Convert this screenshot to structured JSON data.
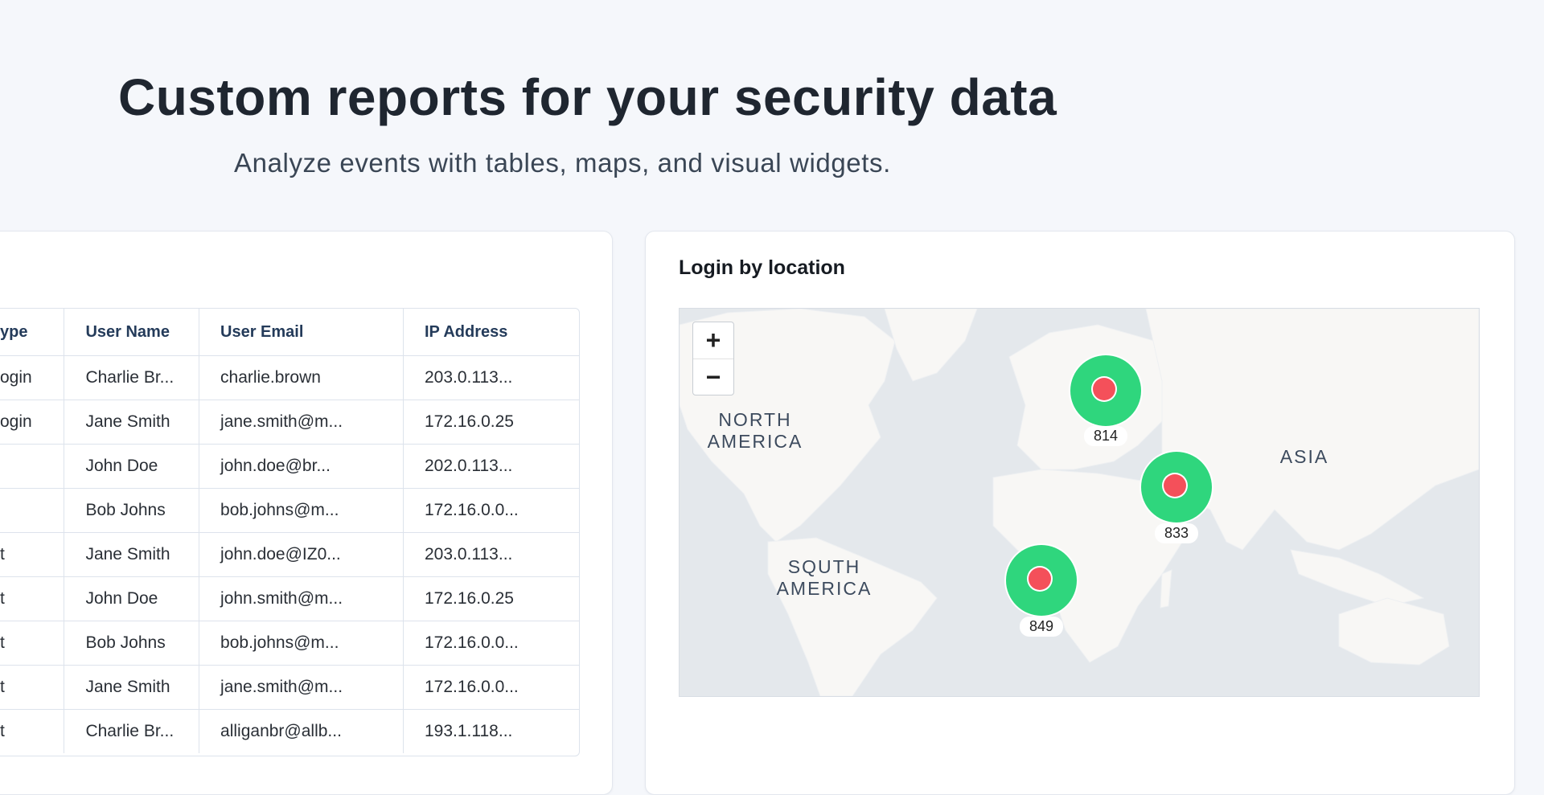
{
  "header": {
    "title": "Custom reports for your security data",
    "subtitle": "Analyze events with tables, maps, and visual widgets."
  },
  "table": {
    "columns": [
      "ype",
      "User Name",
      "User Email",
      "IP  Address"
    ],
    "rows": [
      [
        "ogin",
        "Charlie Br...",
        "charlie.brown",
        "203.0.113..."
      ],
      [
        "ogin",
        "Jane Smith",
        "jane.smith@m...",
        "172.16.0.25"
      ],
      [
        "",
        "John Doe",
        "john.doe@br...",
        "202.0.113..."
      ],
      [
        "",
        "Bob Johns",
        "bob.johns@m...",
        "172.16.0.0..."
      ],
      [
        "t",
        "Jane Smith",
        "john.doe@IZ0...",
        "203.0.113..."
      ],
      [
        "t",
        "John Doe",
        "john.smith@m...",
        "172.16.0.25"
      ],
      [
        "t",
        "Bob Johns",
        "bob.johns@m...",
        "172.16.0.0..."
      ],
      [
        "t",
        "Jane Smith",
        "jane.smith@m...",
        "172.16.0.0..."
      ],
      [
        "t",
        "Charlie Br...",
        "alliganbr@allb...",
        "193.1.118..."
      ]
    ]
  },
  "map_widget": {
    "title": "Login by location",
    "zoom_in": "+",
    "zoom_out": "−",
    "continents": {
      "north_america": "NORTH AMERICA",
      "south_america": "SQUTH AMERICA",
      "asia": "ASIA"
    },
    "markers": [
      {
        "label": "814",
        "region": "Europe"
      },
      {
        "label": "833",
        "region": "Middle East"
      },
      {
        "label": "849",
        "region": "Central Africa"
      }
    ],
    "colors": {
      "cluster": "#2fd67d",
      "dot": "#f4505a",
      "water": "#e4e8ec",
      "land": "#f8f7f5"
    }
  }
}
